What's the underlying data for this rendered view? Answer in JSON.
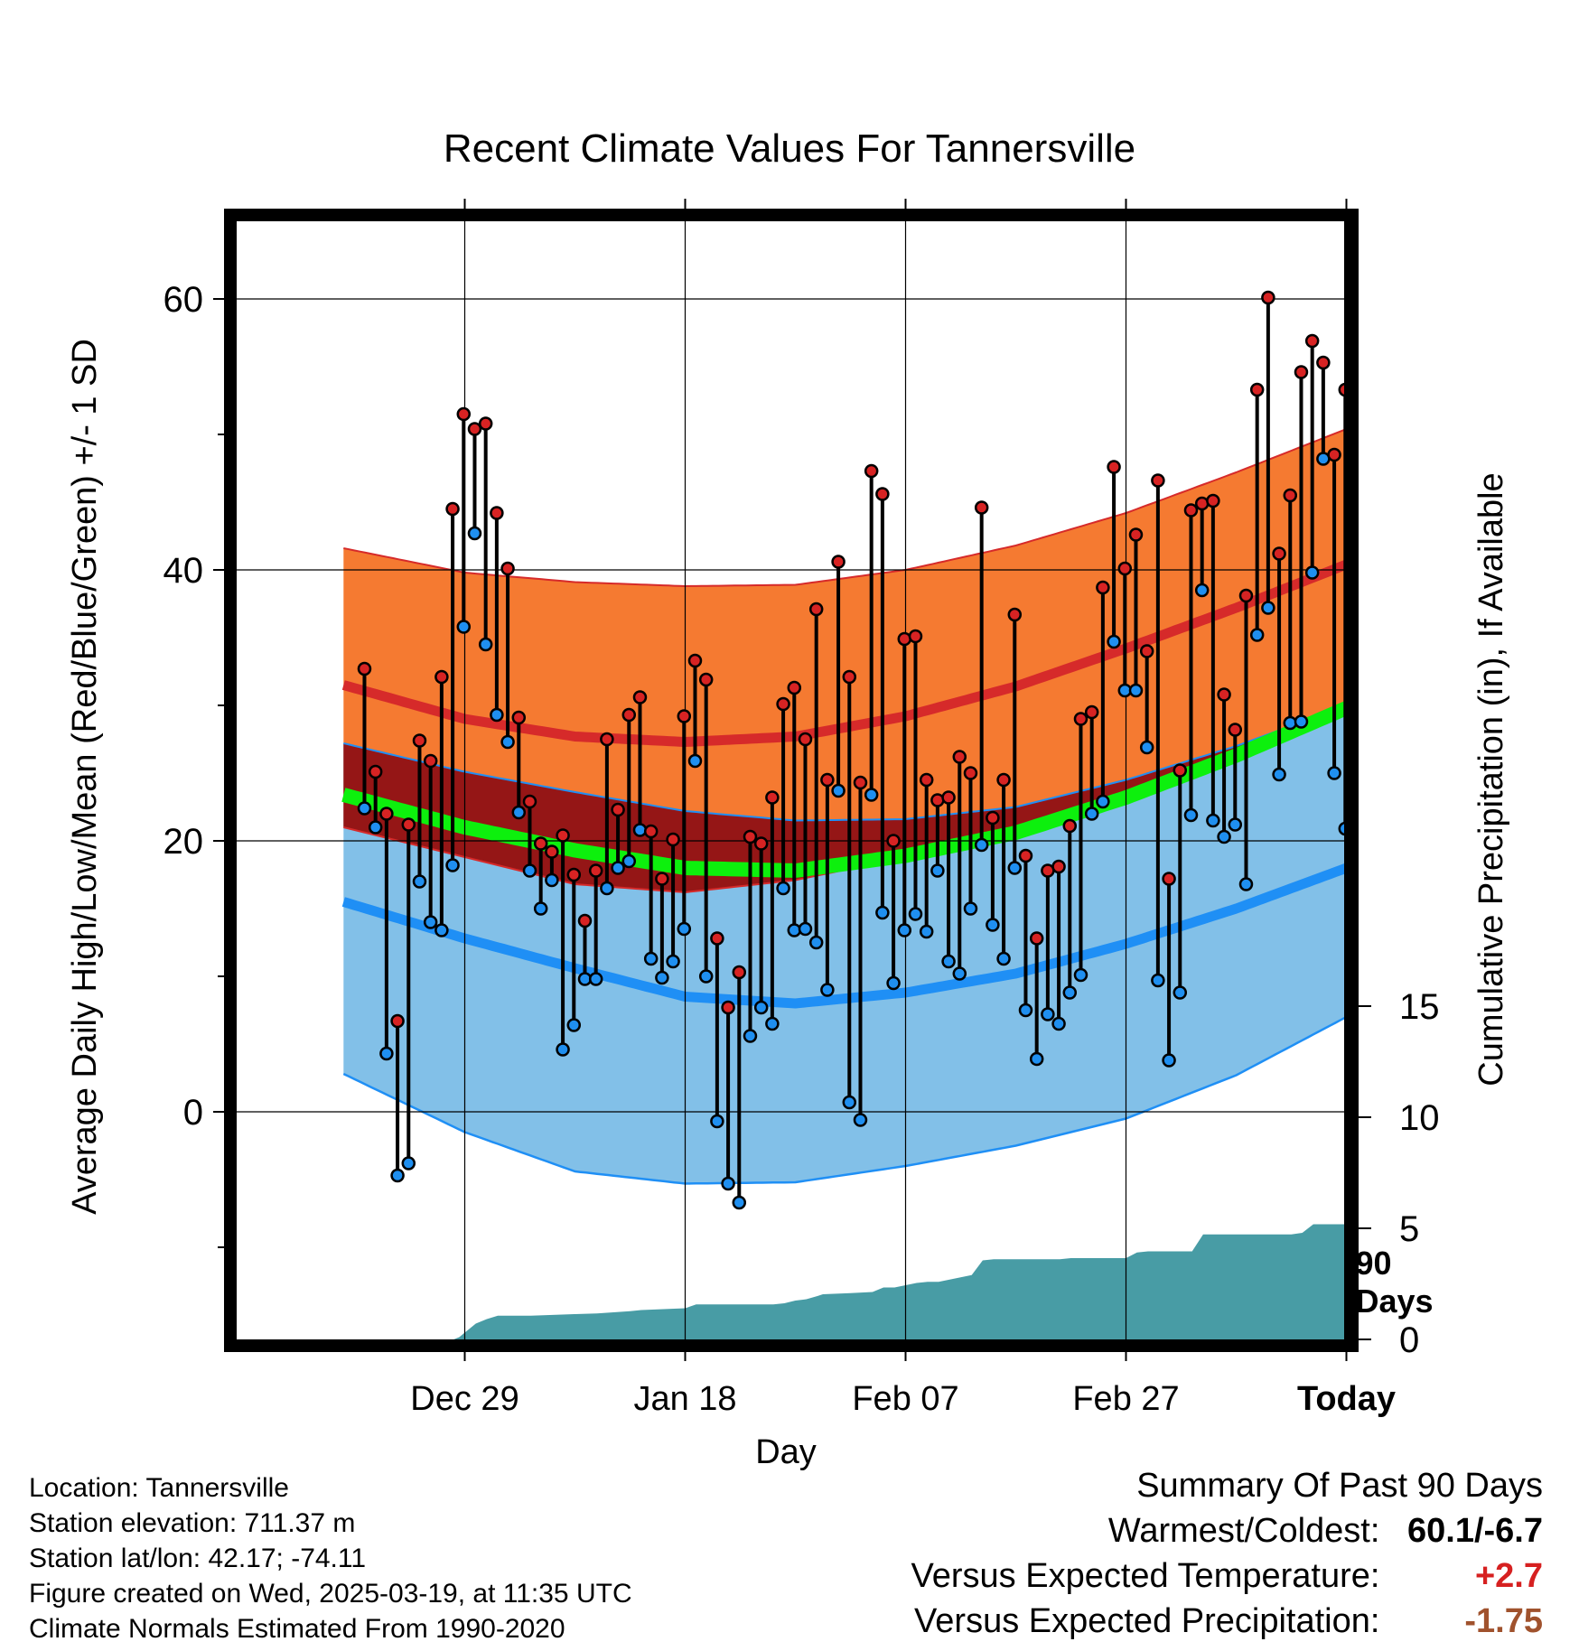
{
  "chart_data": {
    "type": "line",
    "title": "Recent Climate Values For Tannersville",
    "xlabel": "Day",
    "ylabel": "Average Daily High/Low/Mean (Red/Blue/Green) +/- 1 SD",
    "y2label": "Cumulative Precipitation (in), If Available",
    "ylim": [
      -16,
      66
    ],
    "y2lim": [
      0,
      20
    ],
    "x_ticks": [
      {
        "day": 10,
        "label": "Dec 29"
      },
      {
        "day": 30,
        "label": "Jan 18"
      },
      {
        "day": 50,
        "label": "Feb 07"
      },
      {
        "day": 70,
        "label": "Feb 27"
      },
      {
        "day": 90,
        "label": "Today"
      }
    ],
    "y_ticks": [
      0,
      20,
      40,
      60
    ],
    "y_minor_ticks": [
      -10,
      10,
      30,
      50
    ],
    "y2_ticks": [
      0,
      5,
      10,
      15
    ],
    "today_marker": {
      "day": 90,
      "label_line1": "90",
      "label_line2": "Days"
    },
    "normals": {
      "days": [
        -1,
        10,
        20,
        30,
        40,
        50,
        60,
        70,
        80,
        90,
        99
      ],
      "high_mean": [
        31.5,
        29.0,
        27.7,
        27.3,
        27.7,
        29.2,
        31.4,
        34.2,
        37.2,
        40.4,
        43.5
      ],
      "high_upper": [
        41.6,
        39.8,
        39.1,
        38.8,
        38.9,
        40.0,
        41.8,
        44.2,
        47.2,
        50.4,
        54.2
      ],
      "high_lower": [
        21.0,
        18.8,
        16.8,
        16.2,
        17.1,
        18.8,
        20.9,
        23.5,
        26.5,
        29.8,
        34.2
      ],
      "low_mean": [
        15.5,
        12.8,
        10.6,
        8.5,
        8.0,
        8.8,
        10.2,
        12.4,
        15.0,
        18.0,
        22.2
      ],
      "low_upper": [
        27.2,
        25.1,
        23.6,
        22.2,
        21.5,
        21.6,
        22.5,
        24.5,
        27.0,
        30.0,
        31.7
      ],
      "low_lower": [
        2.8,
        -1.5,
        -4.4,
        -5.3,
        -5.2,
        -4.0,
        -2.5,
        -0.5,
        2.7,
        7.0,
        12.2
      ],
      "mean": [
        23.4,
        21.0,
        19.3,
        18.0,
        17.8,
        18.9,
        20.6,
        23.2,
        26.3,
        29.8,
        32.6
      ]
    },
    "series": [
      {
        "name": "High",
        "values": [
          32.7,
          25.1,
          22.0,
          6.7,
          21.2,
          27.4,
          25.9,
          32.1,
          44.5,
          51.5,
          50.4,
          50.8,
          44.2,
          40.1,
          29.1,
          22.9,
          19.8,
          19.2,
          20.4,
          17.5,
          14.1,
          17.8,
          27.5,
          22.3,
          29.3,
          30.6,
          20.7,
          17.2,
          20.1,
          29.2,
          33.3,
          31.9,
          12.8,
          7.7,
          10.3,
          20.3,
          19.8,
          23.2,
          30.1,
          31.3,
          27.5,
          37.1,
          24.5,
          40.6,
          32.1,
          24.3,
          47.3,
          45.6,
          20.0,
          34.9,
          35.1,
          24.5,
          23.0,
          23.2,
          26.2,
          25.0,
          44.6,
          21.7,
          24.5,
          36.7,
          18.9,
          12.8,
          17.8,
          18.1,
          21.1,
          29.0,
          29.5,
          38.7,
          47.6,
          40.1,
          42.6,
          34.0,
          46.6,
          17.2,
          25.2,
          44.4,
          44.9,
          45.1,
          30.8,
          28.2,
          38.1,
          53.3,
          60.1,
          41.2,
          45.5,
          54.6,
          56.9,
          55.3,
          48.5,
          53.3
        ]
      },
      {
        "name": "Low",
        "values": [
          22.4,
          21.0,
          4.3,
          -4.7,
          -3.8,
          17.0,
          14.0,
          13.4,
          18.2,
          35.8,
          42.7,
          34.5,
          29.3,
          27.3,
          22.1,
          17.8,
          15.0,
          17.1,
          4.6,
          6.4,
          9.8,
          9.8,
          16.5,
          18.0,
          18.5,
          20.8,
          11.3,
          9.9,
          11.1,
          13.5,
          25.9,
          10.0,
          -0.7,
          -5.3,
          -6.7,
          5.6,
          7.7,
          6.5,
          16.5,
          13.4,
          13.5,
          12.5,
          9.0,
          23.7,
          0.7,
          -0.6,
          23.4,
          14.7,
          9.5,
          13.4,
          14.6,
          13.3,
          17.8,
          11.1,
          10.2,
          15.0,
          19.7,
          13.8,
          11.3,
          18.0,
          7.5,
          3.9,
          7.2,
          6.5,
          8.8,
          10.1,
          22.0,
          22.9,
          34.7,
          31.1,
          31.1,
          26.9,
          9.7,
          3.8,
          8.8,
          21.9,
          38.5,
          21.5,
          20.3,
          21.2,
          16.8,
          35.2,
          37.2,
          24.9,
          28.7,
          28.8,
          39.8,
          48.2,
          25.0,
          20.9
        ]
      },
      {
        "name": "Cumulative Precipitation",
        "days": [
          -1,
          9,
          9.5,
          10,
          11,
          12,
          13,
          14,
          15,
          16,
          20,
          22,
          25,
          26,
          30,
          31,
          38,
          39,
          40,
          41,
          42,
          42.5,
          45,
          47,
          48,
          49,
          51,
          52,
          53,
          55,
          56,
          57,
          58,
          60,
          61,
          62,
          63,
          64,
          65,
          70,
          71,
          72,
          74,
          75,
          76,
          77,
          82,
          83,
          85,
          86,
          87,
          99
        ],
        "values": [
          0,
          0,
          0.1,
          0.3,
          0.7,
          0.9,
          1.05,
          1.05,
          1.05,
          1.05,
          1.12,
          1.15,
          1.25,
          1.3,
          1.38,
          1.55,
          1.55,
          1.6,
          1.72,
          1.78,
          1.92,
          2.0,
          2.05,
          2.1,
          2.3,
          2.3,
          2.5,
          2.55,
          2.55,
          2.75,
          2.85,
          3.5,
          3.55,
          3.55,
          3.55,
          3.55,
          3.55,
          3.55,
          3.6,
          3.6,
          3.85,
          3.9,
          3.9,
          3.9,
          3.9,
          4.65,
          4.65,
          4.65,
          4.65,
          4.72,
          5.1,
          5.1
        ]
      }
    ],
    "legend": "none",
    "grid": true
  },
  "footer": {
    "location": "Location: Tannersville",
    "elevation": "Station elevation: 711.37 m",
    "latlon": "Station lat/lon: 42.17; -74.11",
    "created": "Figure created on Wed, 2025-03-19, at 11:35 UTC",
    "normals": "Climate Normals Estimated From 1990-2020"
  },
  "summary": {
    "heading": "Summary Of Past 90 Days",
    "warm_cold_label": "Warmest/Coldest:",
    "warm_cold_value": "60.1/-6.7",
    "temp_label": "Versus Expected Temperature:",
    "temp_value": "+2.7",
    "precip_label": "Versus Expected Precipitation:",
    "precip_value": "-1.75"
  },
  "colors": {
    "high_band": "#f57a31",
    "high_band_overlap": "#951616",
    "high_line": "#d62a2a",
    "low_band": "#82c0e8",
    "low_line": "#1f8ff5",
    "mean_line": "#0df00d",
    "precip_fill": "#489ca5",
    "high_dot": "#d72323",
    "low_dot": "#1f8ff0",
    "temp_anomaly": "#d62020",
    "precip_anomaly": "#a0522d"
  }
}
